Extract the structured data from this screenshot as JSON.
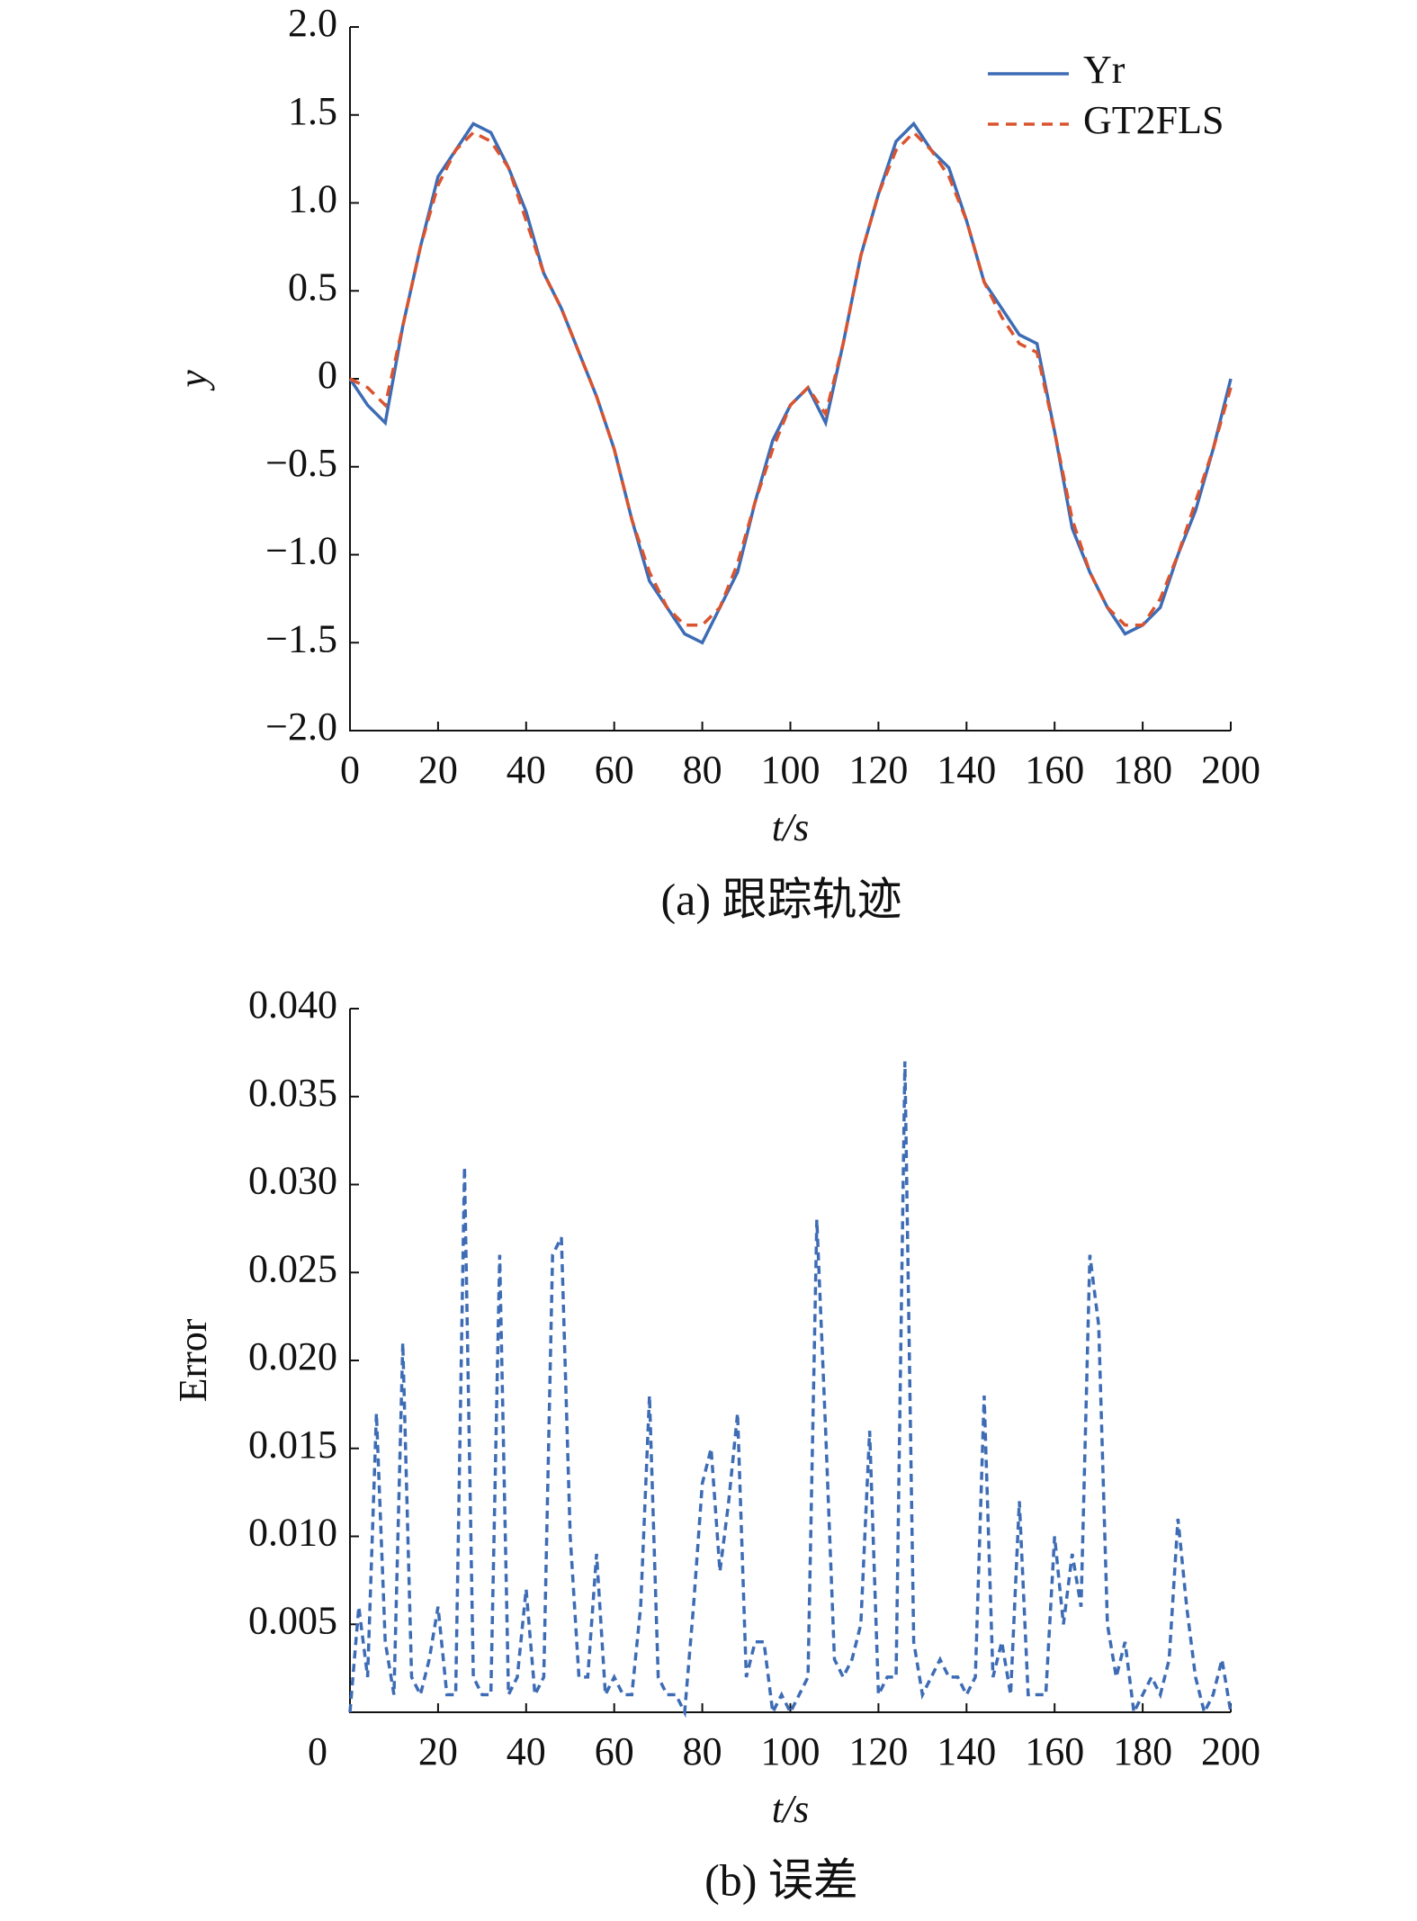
{
  "chart_data": [
    {
      "type": "line",
      "caption": "(a) 跟踪轨迹",
      "xlabel": "t/s",
      "ylabel": "y",
      "legend": "upper right",
      "x": [
        0,
        4,
        8,
        12,
        16,
        20,
        24,
        28,
        32,
        36,
        40,
        44,
        48,
        52,
        56,
        60,
        64,
        68,
        72,
        76,
        80,
        84,
        88,
        92,
        96,
        100,
        104,
        108,
        112,
        116,
        120,
        124,
        128,
        132,
        136,
        140,
        144,
        148,
        152,
        156,
        160,
        164,
        168,
        172,
        176,
        180,
        184,
        188,
        192,
        196,
        200
      ],
      "series": [
        {
          "name": "Yr",
          "color": "#3d6cb5",
          "dash": "none",
          "values": [
            0,
            -0.15,
            -0.25,
            0.3,
            0.75,
            1.15,
            1.3,
            1.45,
            1.4,
            1.2,
            0.95,
            0.6,
            0.4,
            0.15,
            -0.1,
            -0.4,
            -0.8,
            -1.15,
            -1.3,
            -1.45,
            -1.5,
            -1.3,
            -1.1,
            -0.7,
            -0.35,
            -0.15,
            -0.05,
            -0.25,
            0.2,
            0.7,
            1.05,
            1.35,
            1.45,
            1.3,
            1.2,
            0.9,
            0.55,
            0.4,
            0.25,
            0.2,
            -0.3,
            -0.85,
            -1.1,
            -1.3,
            -1.45,
            -1.4,
            -1.3,
            -1.0,
            -0.75,
            -0.4,
            0
          ]
        },
        {
          "name": "GT2FLS",
          "color": "#d9542f",
          "dash": "12 8",
          "values": [
            0,
            -0.05,
            -0.15,
            0.3,
            0.75,
            1.1,
            1.3,
            1.4,
            1.35,
            1.2,
            0.9,
            0.6,
            0.4,
            0.15,
            -0.1,
            -0.4,
            -0.8,
            -1.1,
            -1.3,
            -1.4,
            -1.4,
            -1.3,
            -1.05,
            -0.7,
            -0.4,
            -0.15,
            -0.05,
            -0.2,
            0.2,
            0.7,
            1.05,
            1.3,
            1.4,
            1.3,
            1.15,
            0.9,
            0.55,
            0.35,
            0.2,
            0.15,
            -0.3,
            -0.8,
            -1.1,
            -1.3,
            -1.4,
            -1.4,
            -1.25,
            -1.0,
            -0.7,
            -0.4,
            -0.05
          ]
        }
      ],
      "xlim": [
        0,
        200
      ],
      "xticks": [
        0,
        20,
        40,
        60,
        80,
        100,
        120,
        140,
        160,
        180,
        200
      ],
      "ylim": [
        -2,
        2
      ],
      "yticks": [
        {
          "value": -2,
          "label": "−2.0"
        },
        {
          "value": -1.5,
          "label": "−1.5"
        },
        {
          "value": -1,
          "label": "−1.0"
        },
        {
          "value": -0.5,
          "label": "−0.5"
        },
        0,
        0.5,
        {
          "value": 1,
          "label": "1.0"
        },
        1.5,
        {
          "value": 2,
          "label": "2.0"
        }
      ]
    },
    {
      "type": "line",
      "caption": "(b) 误差",
      "xlabel": "t/s",
      "ylabel": "Error",
      "x": [
        0,
        2,
        4,
        6,
        8,
        10,
        12,
        14,
        16,
        18,
        20,
        22,
        24,
        26,
        28,
        30,
        32,
        34,
        36,
        38,
        40,
        42,
        44,
        46,
        48,
        50,
        52,
        54,
        56,
        58,
        60,
        62,
        64,
        66,
        68,
        70,
        72,
        74,
        76,
        78,
        80,
        82,
        84,
        86,
        88,
        90,
        92,
        94,
        96,
        98,
        100,
        102,
        104,
        106,
        108,
        110,
        112,
        114,
        116,
        118,
        120,
        122,
        124,
        126,
        128,
        130,
        132,
        134,
        136,
        138,
        140,
        142,
        144,
        146,
        148,
        150,
        152,
        154,
        156,
        158,
        160,
        162,
        164,
        166,
        168,
        170,
        172,
        174,
        176,
        178,
        180,
        182,
        184,
        186,
        188,
        190,
        192,
        194,
        196,
        198,
        200
      ],
      "series": [
        {
          "name": "Error",
          "color": "#3d6cb5",
          "dash": "9 6",
          "values": [
            0,
            0.006,
            0.002,
            0.017,
            0.004,
            0.001,
            0.021,
            0.002,
            0.001,
            0.003,
            0.006,
            0.001,
            0.001,
            0.031,
            0.002,
            0.001,
            0.001,
            0.026,
            0.001,
            0.002,
            0.007,
            0.001,
            0.002,
            0.026,
            0.027,
            0.01,
            0.002,
            0.002,
            0.009,
            0.001,
            0.002,
            0.001,
            0.001,
            0.006,
            0.018,
            0.002,
            0.001,
            0.001,
            0,
            0.006,
            0.013,
            0.015,
            0.008,
            0.012,
            0.017,
            0.002,
            0.004,
            0.004,
            0,
            0.001,
            0,
            0.001,
            0.002,
            0.028,
            0.016,
            0.003,
            0.002,
            0.003,
            0.005,
            0.016,
            0.001,
            0.002,
            0.002,
            0.037,
            0.004,
            0.001,
            0.002,
            0.003,
            0.002,
            0.002,
            0.001,
            0.002,
            0.018,
            0.002,
            0.004,
            0.001,
            0.012,
            0.001,
            0.001,
            0.001,
            0.01,
            0.005,
            0.009,
            0.006,
            0.026,
            0.022,
            0.005,
            0.002,
            0.004,
            0,
            0.001,
            0.002,
            0.001,
            0.003,
            0.011,
            0.006,
            0.002,
            0,
            0.001,
            0.003,
            0
          ]
        }
      ],
      "xlim": [
        0,
        200
      ],
      "xticks": [
        0,
        20,
        40,
        60,
        80,
        100,
        120,
        140,
        160,
        180,
        200
      ],
      "ylim": [
        0,
        0.04
      ],
      "yticks": [
        0.005,
        {
          "value": 0.01,
          "label": "0.010"
        },
        0.015,
        {
          "value": 0.02,
          "label": "0.020"
        },
        0.025,
        {
          "value": 0.03,
          "label": "0.030"
        },
        0.035,
        {
          "value": 0.04,
          "label": "0.040"
        }
      ]
    }
  ]
}
